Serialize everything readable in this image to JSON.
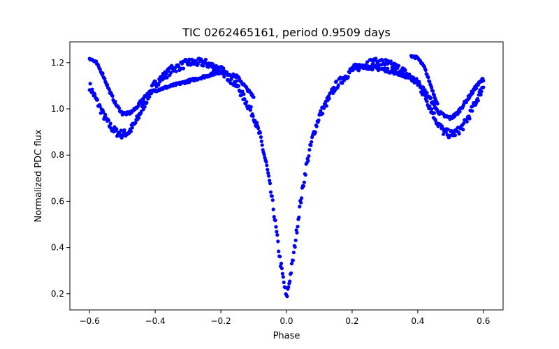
{
  "chart_data": {
    "type": "scatter",
    "title": "TIC 0262465161, period 0.9509 days",
    "xlabel": "Phase",
    "ylabel": "Normalized PDC flux",
    "xlim": [
      -0.66,
      0.66
    ],
    "ylim": [
      0.13,
      1.29
    ],
    "xticks": [
      -0.6,
      -0.4,
      -0.2,
      0.0,
      0.2,
      0.4,
      0.6
    ],
    "xtick_labels": [
      "−0.6",
      "−0.4",
      "−0.2",
      "0.0",
      "0.2",
      "0.4",
      "0.6"
    ],
    "yticks": [
      0.2,
      0.4,
      0.6,
      0.8,
      1.0,
      1.2
    ],
    "ytick_labels": [
      "0.2",
      "0.4",
      "0.6",
      "0.8",
      "1.0",
      "1.2"
    ],
    "grid": false,
    "marker_color": "#0000ff",
    "phase_range": [
      -0.6,
      0.6
    ],
    "curves": [
      {
        "x": [
          -0.6,
          -0.58,
          -0.56,
          -0.54,
          -0.52,
          -0.5,
          -0.48,
          -0.46,
          -0.44,
          -0.42,
          -0.4,
          -0.35,
          -0.3,
          -0.25,
          -0.2,
          -0.15,
          -0.1,
          -0.08,
          -0.06,
          -0.04,
          -0.02,
          0.0,
          0.02,
          0.04,
          0.06,
          0.08,
          0.1,
          0.15,
          0.2,
          0.25,
          0.3,
          0.35,
          0.4,
          0.42,
          0.44,
          0.46,
          0.48,
          0.5,
          0.52,
          0.54,
          0.56,
          0.58,
          0.6
        ],
        "y": [
          1.1,
          1.04,
          0.98,
          0.93,
          0.9,
          0.89,
          0.9,
          0.94,
          1.0,
          1.06,
          1.11,
          1.17,
          1.2,
          1.2,
          1.17,
          1.1,
          0.97,
          0.88,
          0.75,
          0.57,
          0.35,
          0.18,
          0.35,
          0.57,
          0.75,
          0.88,
          0.97,
          1.1,
          1.17,
          1.2,
          1.2,
          1.17,
          1.11,
          1.06,
          1.0,
          0.94,
          0.9,
          0.89,
          0.9,
          0.93,
          0.98,
          1.04,
          1.1
        ],
        "spread": 0.018
      },
      {
        "x": [
          -0.6,
          -0.58,
          -0.56,
          -0.54,
          -0.52,
          -0.5,
          -0.48,
          -0.46,
          -0.44,
          -0.42,
          -0.4,
          -0.35,
          -0.3,
          -0.25,
          -0.2,
          -0.15,
          -0.1
        ],
        "y": [
          1.22,
          1.2,
          1.15,
          1.08,
          1.02,
          0.98,
          0.98,
          1.0,
          1.04,
          1.07,
          1.08,
          1.1,
          1.12,
          1.14,
          1.16,
          1.14,
          1.05
        ],
        "spread": 0.006
      },
      {
        "x": [
          0.2,
          0.25,
          0.3,
          0.35,
          0.4,
          0.42,
          0.44,
          0.46,
          0.48,
          0.5,
          0.52,
          0.54,
          0.56,
          0.58,
          0.6
        ],
        "y": [
          1.18,
          1.18,
          1.17,
          1.15,
          1.12,
          1.08,
          1.04,
          0.99,
          0.97,
          0.96,
          0.98,
          1.02,
          1.06,
          1.1,
          1.13
        ],
        "spread": 0.008
      },
      {
        "x": [
          0.38,
          0.4,
          0.42,
          0.44,
          0.46
        ],
        "y": [
          1.23,
          1.22,
          1.18,
          1.1,
          1.02
        ],
        "spread": 0.005
      }
    ]
  }
}
